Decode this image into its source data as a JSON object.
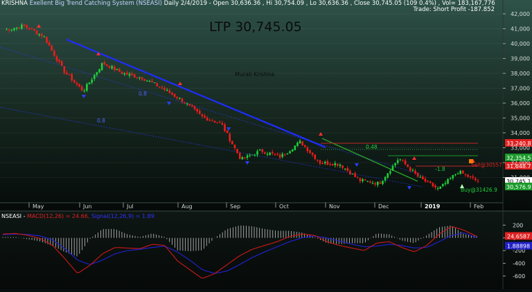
{
  "header": {
    "symbol": "KRISHNA",
    "title": "Exellent Big Trend Catching System (NSEASI)",
    "period": "Daily",
    "date": "2/4/2019",
    "open": "Open 30,636.36",
    "high": "Hi 30,754.09",
    "low": "Lo 30,636.36",
    "close": "Close 30,745.05 (109 0.4%)",
    "vol": "Vol= 183,167,776"
  },
  "trade_short_profit": "Trade: Short Profit -187.852",
  "ltp": "LTP 30,745.05",
  "author": "Murali Krishna",
  "colors": {
    "background_top": "#2e5249",
    "background_bottom": "#050a09",
    "up_candle": "#1fd03a",
    "down_candle": "#ee1c1c",
    "trend_line": "#1e2dff",
    "green_channel": "#2a9a2a",
    "macd_line": "#c01818",
    "signal_line": "#2020c8"
  },
  "chart_data": [
    {
      "type": "candlestick",
      "title": "NSEASI Daily",
      "x_tick_labels": [
        "May",
        "Jun",
        "Jul",
        "Aug",
        "Sep",
        "Oct",
        "Nov",
        "Dec",
        "2019",
        "Feb"
      ],
      "y_tick_labels": [
        "42,000",
        "41,000",
        "40,000",
        "39,000",
        "38,000",
        "37,000",
        "36,000",
        "35,000",
        "34,000",
        "33,000",
        "32,000",
        "31,000"
      ],
      "ylim": [
        29400,
        42600
      ],
      "close_path": [
        {
          "m": "Apr end",
          "close": 40900
        },
        {
          "m": "May mid",
          "close": 41200
        },
        {
          "m": "May end",
          "close": 40500
        },
        {
          "m": "Jun early",
          "close": 38200
        },
        {
          "m": "Jun",
          "close": 36800
        },
        {
          "m": "Jun mid",
          "close": 38700
        },
        {
          "m": "Jul",
          "close": 38000
        },
        {
          "m": "Jul mid",
          "close": 37700
        },
        {
          "m": "Aug",
          "close": 37000
        },
        {
          "m": "Aug mid",
          "close": 36200
        },
        {
          "m": "Aug end",
          "close": 35100
        },
        {
          "m": "Sep",
          "close": 34600
        },
        {
          "m": "Sep mid",
          "close": 32200
        },
        {
          "m": "Sep end",
          "close": 32800
        },
        {
          "m": "Oct",
          "close": 32400
        },
        {
          "m": "Oct end",
          "close": 33400
        },
        {
          "m": "Nov",
          "close": 32000
        },
        {
          "m": "Nov mid",
          "close": 31900
        },
        {
          "m": "Dec",
          "close": 30800
        },
        {
          "m": "Dec mid",
          "close": 30600
        },
        {
          "m": "Dec end",
          "close": 32300
        },
        {
          "m": "Jan",
          "close": 31000
        },
        {
          "m": "Jan mid",
          "close": 30200
        },
        {
          "m": "Jan end",
          "close": 31400
        },
        {
          "m": "Feb",
          "close": 30745
        }
      ],
      "price_tags": [
        {
          "text": "33,240.8",
          "color": "#e02020"
        },
        {
          "text": "32,354.5",
          "color": "#1a9a2a"
        },
        {
          "text": "31,648.7",
          "color": "#e02020"
        },
        {
          "text": "30,745.1",
          "color": "#ffffff"
        },
        {
          "text": "30,576.9",
          "color": "#1a9a2a"
        }
      ],
      "annotations": [
        {
          "text": "0.48",
          "color": "#1fd03a"
        },
        {
          "text": "Sell@30557",
          "color": "#e02020"
        },
        {
          "text": "Buy@31426.9",
          "color": "#1fd03a"
        },
        {
          "text": "-1.8",
          "color": "#1fd03a"
        },
        {
          "text": "0.8",
          "color": "#5060ff"
        },
        {
          "text": "0.8",
          "color": "#5060ff"
        }
      ]
    },
    {
      "type": "line",
      "title": "NSEASI - MACD(12,26) = 24.66, Signal(12,26,9) = 1.89",
      "header_parts": [
        "NSEASI - ",
        "MACD(12,26) = 24.66, ",
        "Signal(12,26,9) = 1.89"
      ],
      "y_tick_labels": [
        "200",
        "0",
        "-200",
        "-400",
        "-600"
      ],
      "ylim": [
        -720,
        280
      ],
      "value_tags": [
        {
          "text": "24.6587",
          "color": "#e02020"
        },
        {
          "text": "1.88898",
          "color": "#2020c8"
        }
      ],
      "series": [
        {
          "name": "MACD(12,26)",
          "values": [
            60,
            70,
            40,
            -10,
            -120,
            -330,
            -560,
            -430,
            -250,
            -150,
            -160,
            -170,
            -100,
            -120,
            -360,
            -500,
            -640,
            -560,
            -420,
            -280,
            -180,
            -120,
            -60,
            20,
            60,
            40,
            -60,
            -120,
            -160,
            -200,
            -80,
            -60,
            -150,
            -220,
            -120,
            60,
            180,
            120,
            25
          ]
        },
        {
          "name": "Signal(12,26,9)",
          "values": [
            50,
            60,
            55,
            30,
            -30,
            -170,
            -350,
            -420,
            -350,
            -250,
            -200,
            -180,
            -150,
            -130,
            -220,
            -350,
            -500,
            -560,
            -520,
            -420,
            -310,
            -220,
            -140,
            -60,
            0,
            30,
            0,
            -50,
            -100,
            -140,
            -130,
            -100,
            -120,
            -160,
            -150,
            -60,
            40,
            80,
            2
          ]
        }
      ]
    }
  ]
}
